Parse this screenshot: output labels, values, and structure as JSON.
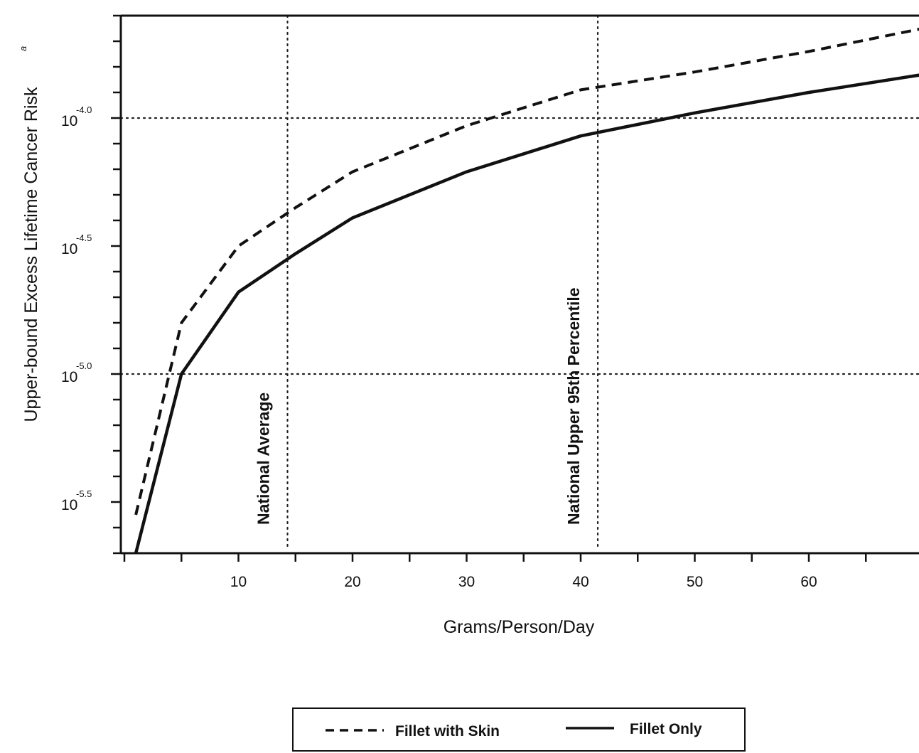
{
  "chart_data": {
    "type": "line",
    "xlabel": "Grams/Person/Day",
    "ylabel": "Upper-bound Excess Lifetime Cancer Risk",
    "ylabel_superscript": "a",
    "xlim": [
      0,
      70
    ],
    "ylim_log10": [
      -5.7,
      -3.6
    ],
    "y_scale": "log",
    "x_ticks": [
      {
        "value": 10,
        "label": "10"
      },
      {
        "value": 20,
        "label": "20"
      },
      {
        "value": 30,
        "label": "30"
      },
      {
        "value": 40,
        "label": "40"
      },
      {
        "value": 50,
        "label": "50"
      },
      {
        "value": 60,
        "label": "60"
      }
    ],
    "y_ticks": [
      {
        "value": -4.0,
        "base": "10",
        "exponent": "-4.0"
      },
      {
        "value": -4.5,
        "base": "10",
        "exponent": "-4.5"
      },
      {
        "value": -5.0,
        "base": "10",
        "exponent": "-5.0"
      },
      {
        "value": -5.5,
        "base": "10",
        "exponent": "-5.5"
      }
    ],
    "reference_lines": [
      {
        "x": 14.3,
        "label": "National Average"
      },
      {
        "x": 41.5,
        "label": "National Upper 95th Percentile"
      }
    ],
    "horizontal_reference_lines": [
      -4.0,
      -5.0
    ],
    "series": [
      {
        "name": "Fillet with Skin",
        "style": "dashed",
        "color": "#111111",
        "x": [
          1,
          5,
          10,
          15,
          20,
          30,
          40,
          50,
          60,
          70
        ],
        "y": [
          -5.55,
          -4.8,
          -4.5,
          -4.35,
          -4.21,
          -4.03,
          -3.89,
          -3.82,
          -3.74,
          -3.65
        ]
      },
      {
        "name": "Fillet Only",
        "style": "solid",
        "color": "#111111",
        "x": [
          1,
          5,
          10,
          15,
          20,
          30,
          40,
          50,
          60,
          70
        ],
        "y": [
          -5.7,
          -5.0,
          -4.68,
          -4.53,
          -4.39,
          -4.21,
          -4.07,
          -3.98,
          -3.9,
          -3.83
        ]
      }
    ],
    "legend_position": "bottom-center"
  }
}
